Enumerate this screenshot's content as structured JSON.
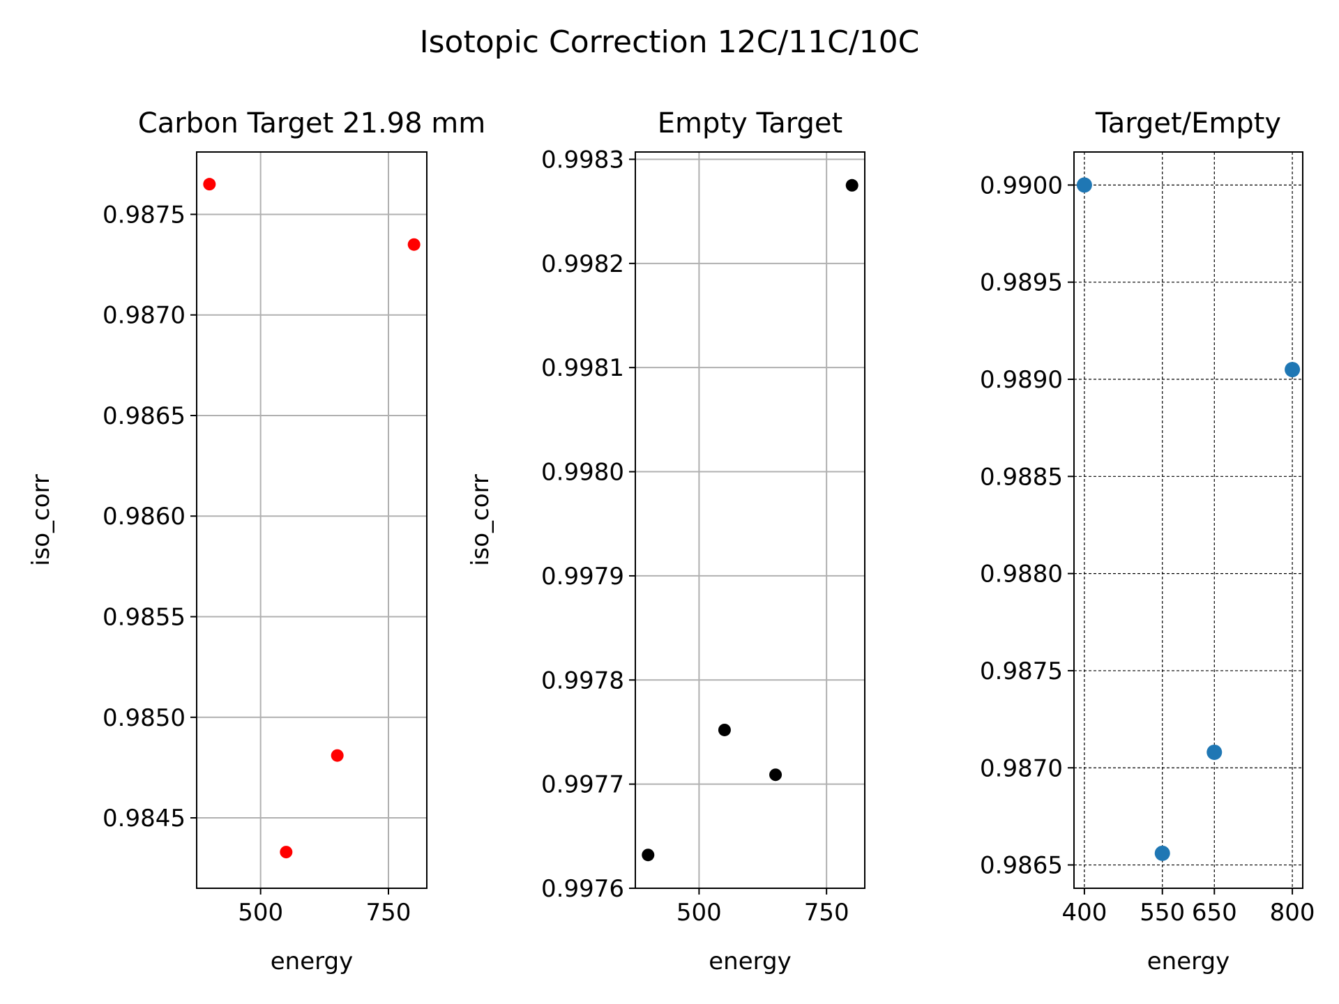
{
  "suptitle": "Isotopic Correction 12C/11C/10C",
  "chart_data": [
    {
      "type": "scatter",
      "title": "Carbon Target 21.98 mm",
      "xlabel": "energy",
      "ylabel": "iso_corr",
      "x": [
        400,
        550,
        650,
        800
      ],
      "y": [
        0.98765,
        0.98433,
        0.98481,
        0.98735
      ],
      "xlim": [
        375,
        825
      ],
      "ylim": [
        0.98415,
        0.98781
      ],
      "xticks": [
        500,
        750
      ],
      "yticks": [
        0.9845,
        0.985,
        0.9855,
        0.986,
        0.9865,
        0.987,
        0.9875
      ],
      "ytick_decimals": 4,
      "grid": "solid",
      "marker_color": "#ff0000"
    },
    {
      "type": "scatter",
      "title": "Empty Target",
      "xlabel": "energy",
      "ylabel": "iso_corr",
      "x": [
        400,
        550,
        650,
        800
      ],
      "y": [
        0.997632,
        0.997752,
        0.997709,
        0.998275
      ],
      "xlim": [
        375,
        825
      ],
      "ylim": [
        0.9976,
        0.998307
      ],
      "xticks": [
        500,
        750
      ],
      "yticks": [
        0.9976,
        0.9977,
        0.9978,
        0.9979,
        0.998,
        0.9981,
        0.9982,
        0.9983
      ],
      "ytick_decimals": 4,
      "grid": "solid",
      "marker_color": "#000000"
    },
    {
      "type": "scatter",
      "title": "Target/Empty",
      "xlabel": "energy",
      "ylabel": "",
      "x": [
        400,
        550,
        650,
        800
      ],
      "y": [
        0.99,
        0.98656,
        0.98708,
        0.98905
      ],
      "xlim": [
        380,
        820
      ],
      "ylim": [
        0.98638,
        0.99017
      ],
      "xticks": [
        400,
        550,
        650,
        800
      ],
      "yticks": [
        0.9865,
        0.987,
        0.9875,
        0.988,
        0.9885,
        0.989,
        0.9895,
        0.99
      ],
      "ytick_decimals": 4,
      "grid": "dashed",
      "marker_color": "#1f77b4"
    }
  ]
}
